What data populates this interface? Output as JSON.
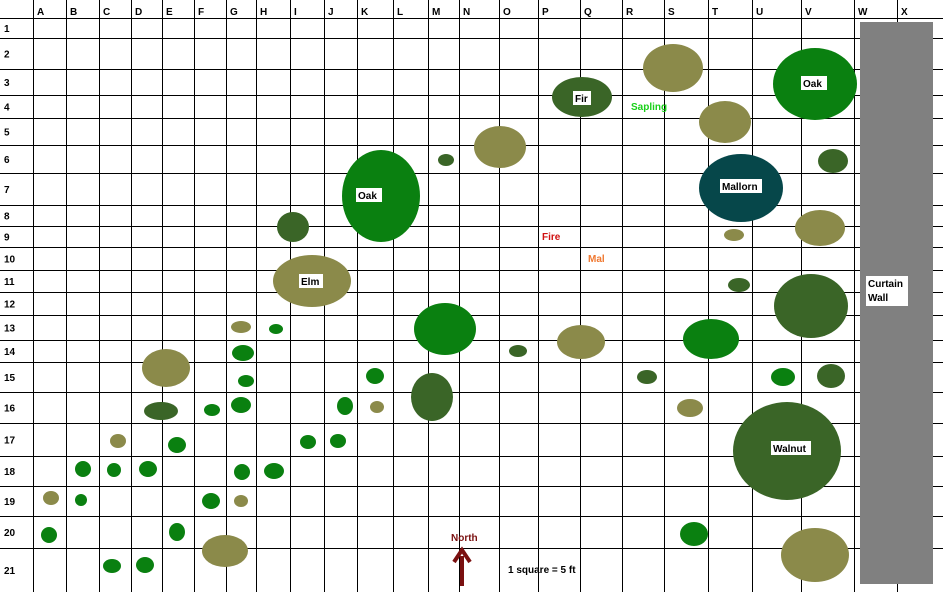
{
  "columns": [
    "A",
    "B",
    "C",
    "D",
    "E",
    "F",
    "G",
    "H",
    "I",
    "J",
    "K",
    "L",
    "M",
    "N",
    "O",
    "P",
    "Q",
    "R",
    "S",
    "T",
    "U",
    "V",
    "W",
    "X"
  ],
  "rows": [
    "1",
    "2",
    "3",
    "4",
    "5",
    "6",
    "7",
    "8",
    "9",
    "10",
    "11",
    "12",
    "13",
    "14",
    "15",
    "16",
    "17",
    "18",
    "19",
    "20",
    "21"
  ],
  "colors": {
    "dark_green": "#3a6527",
    "bright_green": "#0a8010",
    "olive": "#8b8a4a",
    "teal": "#06474a",
    "wall": "#808080",
    "fire": "#d01010",
    "mal": "#f07830",
    "sapling": "#18d018",
    "north": "#7a1010"
  },
  "labels": {
    "oak_top": "Oak",
    "fir": "Fir",
    "sapling": "Sapling",
    "oak_mid": "Oak",
    "mallorn": "Mallorn",
    "fire": "Fire",
    "mal": "Mal",
    "elm": "Elm",
    "curtain_wall_1": "Curtain",
    "curtain_wall_2": "Wall",
    "walnut": "Walnut",
    "north": "North",
    "scale": "1 square = 5 ft"
  }
}
